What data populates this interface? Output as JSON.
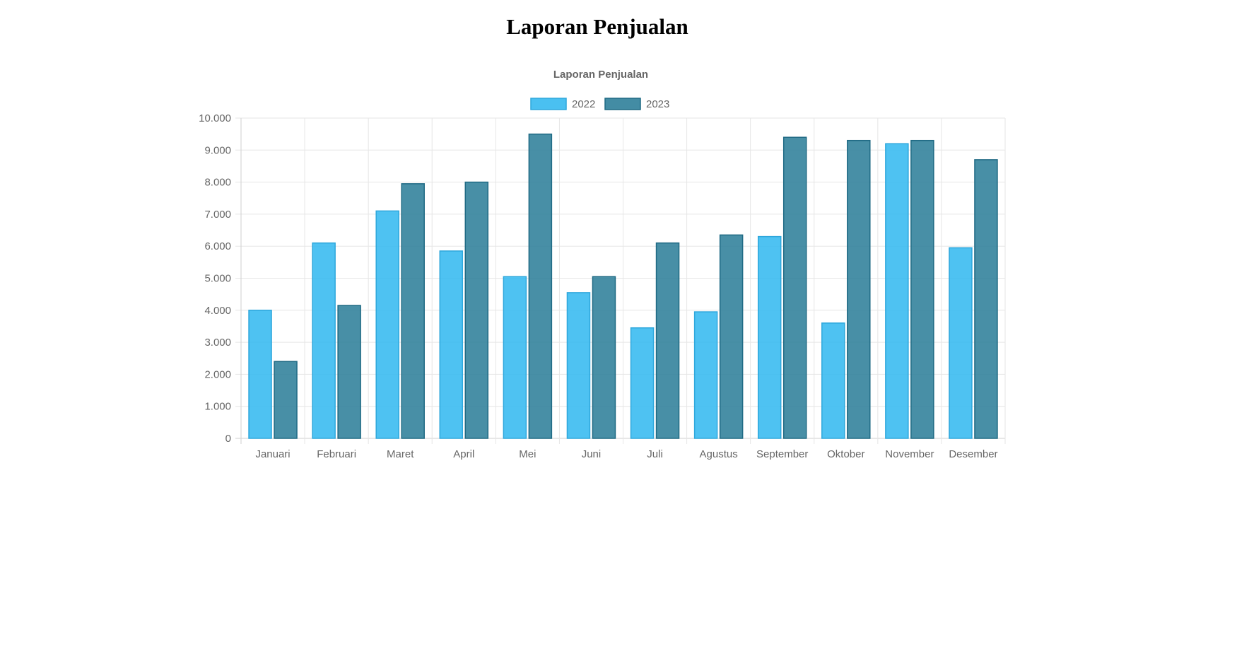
{
  "page": {
    "heading": "Laporan Penjualan"
  },
  "chart_data": {
    "type": "bar",
    "title": "Laporan Penjualan",
    "xlabel": "",
    "ylabel": "",
    "categories": [
      "Januari",
      "Februari",
      "Maret",
      "April",
      "Mei",
      "Juni",
      "Juli",
      "Agustus",
      "September",
      "Oktober",
      "November",
      "Desember"
    ],
    "series": [
      {
        "name": "2022",
        "color": "#36b9f0",
        "border": "#2ea7dc",
        "values": [
          4000,
          6100,
          7100,
          5850,
          5050,
          4550,
          3450,
          3950,
          6300,
          3600,
          9200,
          5950
        ]
      },
      {
        "name": "2023",
        "color": "#2f7f9a",
        "border": "#1f6a84",
        "values": [
          2400,
          4150,
          7950,
          8000,
          9500,
          5050,
          6100,
          6350,
          9400,
          9300,
          9300,
          8700
        ]
      }
    ],
    "ylim": [
      0,
      10000
    ],
    "yticks": [
      "0",
      "1.000",
      "2.000",
      "3.000",
      "4.000",
      "5.000",
      "6.000",
      "7.000",
      "8.000",
      "9.000",
      "10.000"
    ],
    "grid": true,
    "legend": "top-center"
  }
}
